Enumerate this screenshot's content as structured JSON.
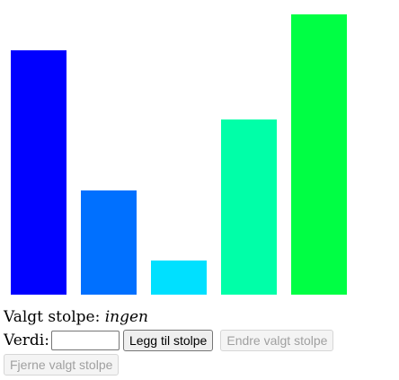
{
  "chart_data": {
    "type": "bar",
    "values": [
      272,
      116,
      38,
      195,
      312
    ],
    "colors": [
      "#0000ff",
      "#0070ff",
      "#00e0ff",
      "#00ffa8",
      "#00ff44"
    ],
    "ylim": [
      0,
      312
    ]
  },
  "status": {
    "label": "Valgt stolpe:",
    "value": "ingen"
  },
  "controls": {
    "value_label": "Verdi:",
    "value_input": "",
    "add_label": "Legg til stolpe",
    "edit_label": "Endre valgt stolpe",
    "remove_label": "Fjerne valgt stolpe"
  }
}
